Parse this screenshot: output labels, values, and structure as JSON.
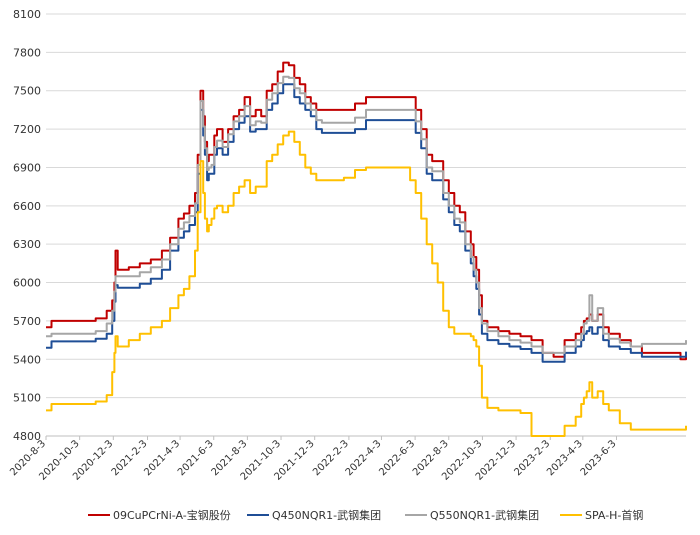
{
  "chart_data": {
    "type": "line",
    "title": "",
    "xlabel": "",
    "ylabel": "",
    "ylim": [
      4800,
      8100
    ],
    "yticks": [
      4800,
      5100,
      5400,
      5700,
      6000,
      6300,
      6600,
      6900,
      7200,
      7500,
      7800,
      8100
    ],
    "xlim": [
      0,
      1160
    ],
    "x_unit": "days since 2020-8-3",
    "xticks": [
      {
        "label": "2020-8-3",
        "day": 0
      },
      {
        "label": "2020-10-3",
        "day": 61
      },
      {
        "label": "2020-12-3",
        "day": 122
      },
      {
        "label": "2021-2-3",
        "day": 184
      },
      {
        "label": "2021-4-3",
        "day": 243
      },
      {
        "label": "2021-6-3",
        "day": 304
      },
      {
        "label": "2021-8-3",
        "day": 365
      },
      {
        "label": "2021-10-3",
        "day": 426
      },
      {
        "label": "2021-12-3",
        "day": 487
      },
      {
        "label": "2022-2-3",
        "day": 549
      },
      {
        "label": "2022-4-3",
        "day": 608
      },
      {
        "label": "2022-6-3",
        "day": 669
      },
      {
        "label": "2022-8-3",
        "day": 730
      },
      {
        "label": "2022-10-3",
        "day": 791
      },
      {
        "label": "2022-12-3",
        "day": 852
      },
      {
        "label": "2023-2-3",
        "day": 914
      },
      {
        "label": "2023-4-3",
        "day": 973
      },
      {
        "label": "2023-6-3",
        "day": 1034
      }
    ],
    "legend_position": "bottom",
    "series": [
      {
        "name": "09CuPCrNi-A-宝钢股份",
        "color": "#C00000",
        "x": [
          0,
          10,
          60,
          90,
          110,
          120,
          124,
          126,
          130,
          150,
          170,
          190,
          210,
          225,
          240,
          250,
          260,
          270,
          275,
          280,
          285,
          288,
          292,
          295,
          300,
          305,
          310,
          320,
          330,
          340,
          350,
          360,
          370,
          380,
          390,
          400,
          410,
          420,
          430,
          440,
          450,
          460,
          470,
          480,
          490,
          500,
          520,
          540,
          560,
          580,
          600,
          620,
          640,
          660,
          670,
          680,
          690,
          700,
          710,
          720,
          730,
          740,
          750,
          760,
          770,
          775,
          780,
          785,
          790,
          800,
          820,
          840,
          860,
          880,
          900,
          920,
          940,
          960,
          970,
          975,
          980,
          985,
          990,
          1000,
          1010,
          1020,
          1040,
          1060,
          1080,
          1100,
          1120,
          1140,
          1150,
          1160
        ],
        "y": [
          5650,
          5700,
          5700,
          5720,
          5780,
          5860,
          6000,
          6250,
          6100,
          6120,
          6150,
          6180,
          6250,
          6350,
          6500,
          6540,
          6600,
          6700,
          7000,
          7500,
          7300,
          7100,
          6950,
          7000,
          7000,
          7150,
          7200,
          7100,
          7200,
          7300,
          7350,
          7450,
          7300,
          7350,
          7300,
          7500,
          7550,
          7650,
          7720,
          7700,
          7600,
          7550,
          7450,
          7400,
          7350,
          7350,
          7350,
          7350,
          7400,
          7450,
          7450,
          7450,
          7450,
          7450,
          7350,
          7200,
          7000,
          6950,
          6950,
          6800,
          6700,
          6600,
          6550,
          6400,
          6300,
          6200,
          6100,
          5900,
          5700,
          5650,
          5620,
          5600,
          5580,
          5550,
          5450,
          5420,
          5550,
          5600,
          5650,
          5700,
          5720,
          5750,
          5700,
          5750,
          5650,
          5600,
          5550,
          5500,
          5450,
          5450,
          5450,
          5450,
          5400,
          5450
        ]
      },
      {
        "name": "Q450NQR1-武钢集团",
        "color": "#1F4E96",
        "x": [
          0,
          10,
          60,
          90,
          110,
          120,
          124,
          126,
          130,
          150,
          170,
          190,
          210,
          225,
          240,
          250,
          260,
          270,
          275,
          280,
          285,
          288,
          292,
          295,
          300,
          305,
          310,
          320,
          330,
          340,
          350,
          360,
          370,
          380,
          390,
          400,
          410,
          420,
          430,
          440,
          450,
          460,
          470,
          480,
          490,
          500,
          520,
          540,
          560,
          580,
          600,
          620,
          640,
          660,
          670,
          680,
          690,
          700,
          710,
          720,
          730,
          740,
          750,
          760,
          770,
          775,
          780,
          785,
          790,
          800,
          820,
          840,
          860,
          880,
          900,
          920,
          940,
          960,
          970,
          975,
          980,
          985,
          990,
          1000,
          1010,
          1020,
          1040,
          1060,
          1080,
          1100,
          1120,
          1140,
          1150,
          1160
        ],
        "y": [
          5490,
          5540,
          5540,
          5560,
          5600,
          5700,
          5850,
          5980,
          5960,
          5960,
          5990,
          6030,
          6100,
          6250,
          6350,
          6400,
          6450,
          6550,
          6850,
          7350,
          7150,
          7000,
          6800,
          6850,
          6850,
          7000,
          7050,
          7000,
          7100,
          7200,
          7250,
          7300,
          7180,
          7200,
          7200,
          7350,
          7400,
          7480,
          7550,
          7550,
          7450,
          7400,
          7350,
          7300,
          7200,
          7170,
          7170,
          7170,
          7200,
          7270,
          7270,
          7270,
          7270,
          7270,
          7170,
          7050,
          6850,
          6800,
          6800,
          6650,
          6550,
          6450,
          6400,
          6250,
          6150,
          6050,
          5950,
          5750,
          5600,
          5550,
          5520,
          5500,
          5480,
          5450,
          5380,
          5380,
          5450,
          5500,
          5550,
          5600,
          5620,
          5650,
          5600,
          5650,
          5550,
          5500,
          5480,
          5450,
          5420,
          5420,
          5420,
          5420,
          5420,
          5460
        ]
      },
      {
        "name": "Q550NQR1-武钢集团",
        "color": "#A6A6A6",
        "x": [
          0,
          10,
          60,
          90,
          110,
          120,
          124,
          126,
          130,
          150,
          170,
          190,
          210,
          225,
          240,
          250,
          260,
          270,
          275,
          280,
          285,
          288,
          292,
          295,
          300,
          305,
          310,
          320,
          330,
          340,
          350,
          360,
          370,
          380,
          390,
          400,
          410,
          420,
          430,
          440,
          450,
          460,
          470,
          480,
          490,
          500,
          520,
          540,
          560,
          580,
          600,
          620,
          640,
          660,
          670,
          680,
          690,
          700,
          710,
          720,
          730,
          740,
          750,
          760,
          770,
          775,
          780,
          785,
          790,
          800,
          820,
          840,
          860,
          880,
          900,
          920,
          940,
          960,
          970,
          975,
          980,
          985,
          990,
          1000,
          1010,
          1020,
          1040,
          1060,
          1080,
          1100,
          1120,
          1140,
          1150,
          1160
        ],
        "y": [
          5580,
          5600,
          5600,
          5620,
          5680,
          5780,
          5930,
          6050,
          6050,
          6050,
          6080,
          6120,
          6180,
          6300,
          6420,
          6470,
          6520,
          6620,
          6920,
          7420,
          7220,
          7050,
          6880,
          6900,
          6920,
          7060,
          7110,
          7060,
          7160,
          7260,
          7300,
          7380,
          7230,
          7260,
          7250,
          7430,
          7480,
          7560,
          7610,
          7600,
          7520,
          7480,
          7400,
          7350,
          7270,
          7250,
          7250,
          7250,
          7290,
          7350,
          7350,
          7350,
          7350,
          7350,
          7260,
          7120,
          6900,
          6870,
          6870,
          6700,
          6600,
          6500,
          6470,
          6300,
          6200,
          6100,
          6000,
          5800,
          5680,
          5620,
          5580,
          5550,
          5530,
          5500,
          5450,
          5450,
          5500,
          5550,
          5600,
          5680,
          5700,
          5900,
          5700,
          5800,
          5600,
          5560,
          5530,
          5500,
          5520,
          5520,
          5520,
          5520,
          5520,
          5550
        ]
      },
      {
        "name": "SPA-H-首钢",
        "color": "#FFC000",
        "x": [
          0,
          10,
          60,
          90,
          110,
          120,
          124,
          126,
          130,
          150,
          170,
          190,
          210,
          225,
          240,
          250,
          260,
          270,
          275,
          280,
          285,
          288,
          292,
          295,
          300,
          305,
          310,
          320,
          330,
          340,
          350,
          360,
          370,
          380,
          390,
          400,
          410,
          420,
          430,
          440,
          450,
          460,
          470,
          480,
          490,
          500,
          520,
          540,
          560,
          580,
          600,
          620,
          640,
          660,
          670,
          680,
          690,
          700,
          710,
          720,
          730,
          740,
          750,
          760,
          770,
          775,
          780,
          785,
          790,
          800,
          820,
          840,
          860,
          880,
          900,
          920,
          940,
          960,
          970,
          975,
          980,
          985,
          990,
          1000,
          1010,
          1020,
          1040,
          1060,
          1080,
          1100,
          1120,
          1140,
          1150,
          1160
        ],
        "y": [
          5000,
          5050,
          5050,
          5070,
          5120,
          5300,
          5450,
          5580,
          5500,
          5550,
          5600,
          5650,
          5700,
          5800,
          5900,
          5950,
          6050,
          6250,
          6550,
          6950,
          6700,
          6500,
          6400,
          6450,
          6500,
          6580,
          6600,
          6550,
          6600,
          6700,
          6750,
          6800,
          6700,
          6750,
          6750,
          6950,
          7000,
          7080,
          7150,
          7180,
          7100,
          7000,
          6900,
          6850,
          6800,
          6800,
          6800,
          6820,
          6880,
          6900,
          6900,
          6900,
          6900,
          6800,
          6700,
          6500,
          6300,
          6150,
          6000,
          5780,
          5650,
          5600,
          5600,
          5600,
          5580,
          5550,
          5500,
          5350,
          5100,
          5020,
          5000,
          5000,
          4980,
          4800,
          4800,
          4800,
          4880,
          4950,
          5050,
          5100,
          5150,
          5220,
          5100,
          5150,
          5050,
          5000,
          4900,
          4850,
          4850,
          4850,
          4850,
          4850,
          4850,
          4880
        ]
      }
    ]
  }
}
